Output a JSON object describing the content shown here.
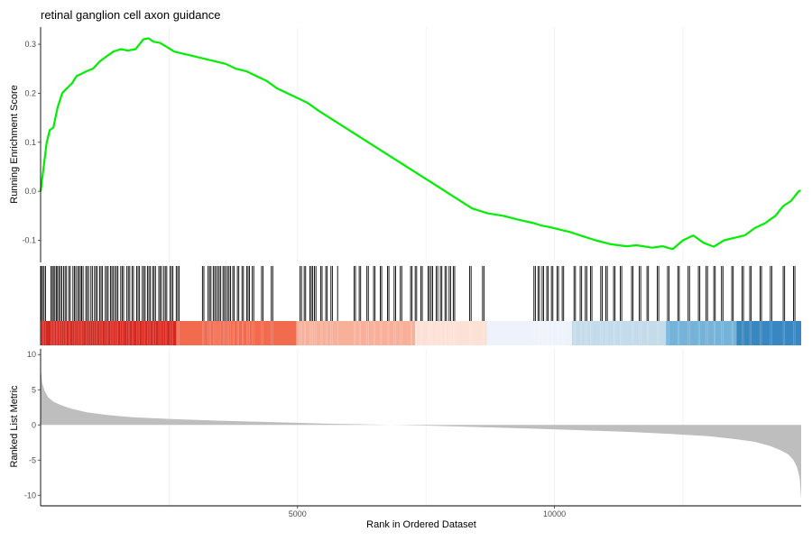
{
  "chart_data": {
    "type": "line",
    "title": "retinal ganglion cell axon guidance",
    "xlabel": "Rank in Ordered Dataset",
    "x_range": [
      1,
      14800
    ],
    "x_ticks": [
      5000,
      10000
    ],
    "x_tick_labels": [
      "5000",
      "10000"
    ],
    "grid_v_minor": [
      2500,
      7500,
      12500
    ],
    "enrichment": {
      "ylabel": "Running Enrichment Score",
      "ylim": [
        -0.145,
        0.335
      ],
      "y_ticks": [
        -0.1,
        0.0,
        0.1,
        0.2,
        0.3
      ],
      "y_tick_labels": [
        "-0.1",
        "0.0",
        "0.1",
        "0.2",
        "0.3"
      ],
      "line_color": "#00ee00",
      "series": [
        {
          "x": [
            1,
            60,
            120,
            180,
            250,
            330,
            420,
            510,
            610,
            700,
            800,
            900,
            1020,
            1150,
            1280,
            1420,
            1560,
            1700,
            1850,
            2000,
            2100,
            2200,
            2320,
            2450,
            2600,
            2800,
            3000,
            3200,
            3400,
            3600,
            3800,
            4000,
            4200,
            4400,
            4600,
            4800,
            5000,
            5200,
            5400,
            5700,
            6000,
            6300,
            6600,
            6900,
            7200,
            7500,
            7800,
            8100,
            8400,
            8700,
            9000,
            9300,
            9600,
            9750,
            9900,
            10100,
            10300,
            10500,
            10800,
            11100,
            11400,
            11600,
            11900,
            12100,
            12300,
            12500,
            12700,
            12900,
            13100,
            13300,
            13500,
            13700,
            13900,
            14100,
            14300,
            14450,
            14600,
            14750,
            14790
          ],
          "y": [
            0.0,
            0.05,
            0.1,
            0.125,
            0.13,
            0.17,
            0.2,
            0.21,
            0.22,
            0.235,
            0.24,
            0.245,
            0.25,
            0.265,
            0.275,
            0.285,
            0.29,
            0.287,
            0.29,
            0.31,
            0.312,
            0.305,
            0.303,
            0.295,
            0.285,
            0.28,
            0.275,
            0.27,
            0.265,
            0.26,
            0.25,
            0.245,
            0.235,
            0.225,
            0.21,
            0.2,
            0.19,
            0.18,
            0.165,
            0.145,
            0.125,
            0.105,
            0.085,
            0.065,
            0.045,
            0.025,
            0.005,
            -0.015,
            -0.035,
            -0.045,
            -0.05,
            -0.058,
            -0.065,
            -0.07,
            -0.073,
            -0.078,
            -0.083,
            -0.09,
            -0.1,
            -0.108,
            -0.112,
            -0.11,
            -0.115,
            -0.112,
            -0.118,
            -0.1,
            -0.09,
            -0.105,
            -0.113,
            -0.1,
            -0.095,
            -0.09,
            -0.075,
            -0.065,
            -0.05,
            -0.03,
            -0.02,
            0.0,
            0.002
          ]
        }
      ]
    },
    "gene_hits": {
      "segments": [
        [
          15,
          40
        ],
        [
          40,
          120
        ],
        [
          200,
          240
        ],
        [
          250,
          320
        ],
        [
          330,
          420
        ],
        [
          450,
          520
        ],
        [
          550,
          600
        ],
        [
          630,
          700
        ],
        [
          720,
          780
        ],
        [
          800,
          850
        ],
        [
          880,
          940
        ],
        [
          980,
          1020
        ],
        [
          1050,
          1120
        ],
        [
          1150,
          1220
        ],
        [
          1260,
          1330
        ],
        [
          1360,
          1420
        ],
        [
          1450,
          1520
        ],
        [
          1560,
          1640
        ],
        [
          1680,
          1740
        ],
        [
          1780,
          1830
        ],
        [
          1870,
          1940
        ],
        [
          1980,
          2040
        ],
        [
          2080,
          2140
        ],
        [
          2180,
          2260
        ],
        [
          2300,
          2360
        ],
        [
          2400,
          2460
        ],
        [
          2520,
          2580
        ],
        [
          2640,
          2700
        ],
        [
          3150,
          3180
        ],
        [
          3260,
          3320
        ],
        [
          3360,
          3420
        ],
        [
          3450,
          3520
        ],
        [
          3550,
          3610
        ],
        [
          3640,
          3700
        ],
        [
          3740,
          3790
        ],
        [
          3830,
          3880
        ],
        [
          3920,
          3970
        ],
        [
          4010,
          4070
        ],
        [
          4120,
          4170
        ],
        [
          4300,
          4330
        ],
        [
          4490,
          4520
        ],
        [
          5050,
          5080
        ],
        [
          5130,
          5160
        ],
        [
          5240,
          5300
        ],
        [
          5330,
          5360
        ],
        [
          5450,
          5480
        ],
        [
          5550,
          5580
        ],
        [
          5650,
          5680
        ],
        [
          5780,
          5800
        ],
        [
          6100,
          6130
        ],
        [
          6200,
          6230
        ],
        [
          6350,
          6380
        ],
        [
          6480,
          6510
        ],
        [
          6610,
          6640
        ],
        [
          6750,
          6780
        ],
        [
          6880,
          6910
        ],
        [
          7000,
          7030
        ],
        [
          7200,
          7240
        ],
        [
          7290,
          7320
        ],
        [
          7400,
          7430
        ],
        [
          7540,
          7570
        ],
        [
          7600,
          7630
        ],
        [
          7700,
          7730
        ],
        [
          7780,
          7810
        ],
        [
          7870,
          7900
        ],
        [
          7950,
          7980
        ],
        [
          8030,
          8060
        ],
        [
          8350,
          8380
        ],
        [
          8600,
          8630
        ],
        [
          9600,
          9640
        ],
        [
          9680,
          9720
        ],
        [
          9760,
          9790
        ],
        [
          9850,
          9880
        ],
        [
          9940,
          9970
        ],
        [
          10050,
          10080
        ],
        [
          10150,
          10180
        ],
        [
          10380,
          10410
        ],
        [
          10500,
          10530
        ],
        [
          10600,
          10630
        ],
        [
          10700,
          10730
        ],
        [
          10900,
          10930
        ],
        [
          11000,
          11030
        ],
        [
          11150,
          11180
        ],
        [
          11280,
          11310
        ],
        [
          11500,
          11530
        ],
        [
          11650,
          11680
        ],
        [
          11800,
          11830
        ],
        [
          12000,
          12030
        ],
        [
          12200,
          12230
        ],
        [
          12400,
          12430
        ],
        [
          12600,
          12630
        ],
        [
          12800,
          12830
        ],
        [
          12950,
          12980
        ],
        [
          13100,
          13130
        ],
        [
          13250,
          13280
        ],
        [
          13450,
          13480
        ],
        [
          13650,
          13680
        ],
        [
          13800,
          13830
        ],
        [
          14000,
          14030
        ],
        [
          14200,
          14230
        ],
        [
          14450,
          14480
        ],
        [
          14650,
          14680
        ]
      ]
    },
    "rank_bands": [
      {
        "x0": 0,
        "x1": 2650,
        "color": "#d7261e"
      },
      {
        "x0": 2650,
        "x1": 4980,
        "color": "#f26b4f"
      },
      {
        "x0": 4980,
        "x1": 7290,
        "color": "#f9b09b"
      },
      {
        "x0": 7290,
        "x1": 8690,
        "color": "#fee1d6"
      },
      {
        "x0": 8690,
        "x1": 10340,
        "color": "#eef3fb"
      },
      {
        "x0": 10340,
        "x1": 12170,
        "color": "#c3dbea"
      },
      {
        "x0": 12170,
        "x1": 13540,
        "color": "#75b3d8"
      },
      {
        "x0": 13540,
        "x1": 14800,
        "color": "#3987c0"
      }
    ],
    "ranked_metric": {
      "ylabel": "Ranked List Metric",
      "ylim": [
        -11.5,
        10.8
      ],
      "y_ticks": [
        -10,
        -5,
        0,
        5,
        10
      ],
      "y_tick_labels": [
        "-10",
        "-5",
        "0",
        "5",
        "10"
      ],
      "fill_color": "#bebebe",
      "x": [
        0,
        30,
        80,
        150,
        250,
        400,
        600,
        900,
        1300,
        1800,
        2500,
        3500,
        4500,
        5500,
        6500,
        7500,
        8500,
        9500,
        10500,
        11500,
        12300,
        13000,
        13500,
        13900,
        14200,
        14400,
        14550,
        14650,
        14720,
        14770,
        14800
      ],
      "y": [
        8.5,
        6.0,
        4.8,
        3.9,
        3.3,
        2.8,
        2.3,
        1.8,
        1.4,
        1.1,
        0.85,
        0.6,
        0.4,
        0.2,
        0.05,
        -0.1,
        -0.3,
        -0.5,
        -0.75,
        -1.0,
        -1.3,
        -1.6,
        -2.0,
        -2.4,
        -3.0,
        -3.6,
        -4.2,
        -5.0,
        -6.0,
        -7.5,
        -10.5
      ]
    }
  }
}
